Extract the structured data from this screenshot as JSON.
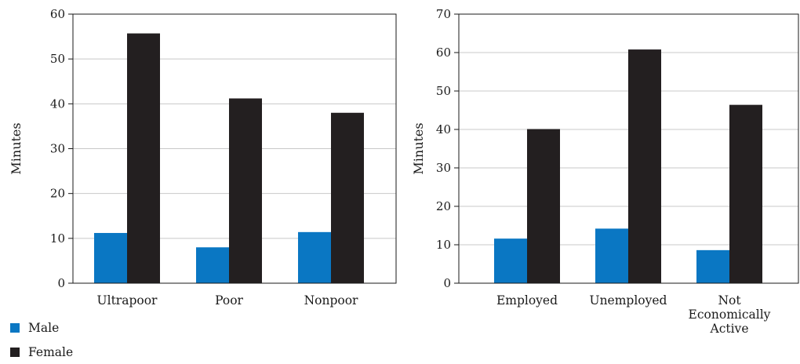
{
  "colors": {
    "male": "#0a77c3",
    "female": "#231f20",
    "grid": "#c8c8c8",
    "axis": "#1a1a1a"
  },
  "legend": [
    {
      "key": "male",
      "label": "Male"
    },
    {
      "key": "female",
      "label": "Female"
    }
  ],
  "chart_data": [
    {
      "type": "bar",
      "ylabel": "Minutes",
      "ylim": [
        0,
        60
      ],
      "yticks": [
        0,
        10,
        20,
        30,
        40,
        50,
        60
      ],
      "grid": true,
      "categories": [
        [
          "Ultrapoor"
        ],
        [
          "Poor"
        ],
        [
          "Nonpoor"
        ]
      ],
      "series": [
        {
          "name": "Male",
          "color_key": "male",
          "values": [
            11.2,
            8.0,
            11.4
          ]
        },
        {
          "name": "Female",
          "color_key": "female",
          "values": [
            55.7,
            41.2,
            38.0
          ]
        }
      ]
    },
    {
      "type": "bar",
      "ylabel": "Minutes",
      "ylim": [
        0,
        70
      ],
      "yticks": [
        0,
        10,
        20,
        30,
        40,
        50,
        60,
        70
      ],
      "grid": true,
      "categories": [
        [
          "Employed"
        ],
        [
          "Unemployed"
        ],
        [
          "Not",
          "Economically",
          "Active"
        ]
      ],
      "series": [
        {
          "name": "Male",
          "color_key": "male",
          "values": [
            11.6,
            14.2,
            8.6
          ]
        },
        {
          "name": "Female",
          "color_key": "female",
          "values": [
            40.1,
            60.8,
            46.4
          ]
        }
      ]
    }
  ]
}
